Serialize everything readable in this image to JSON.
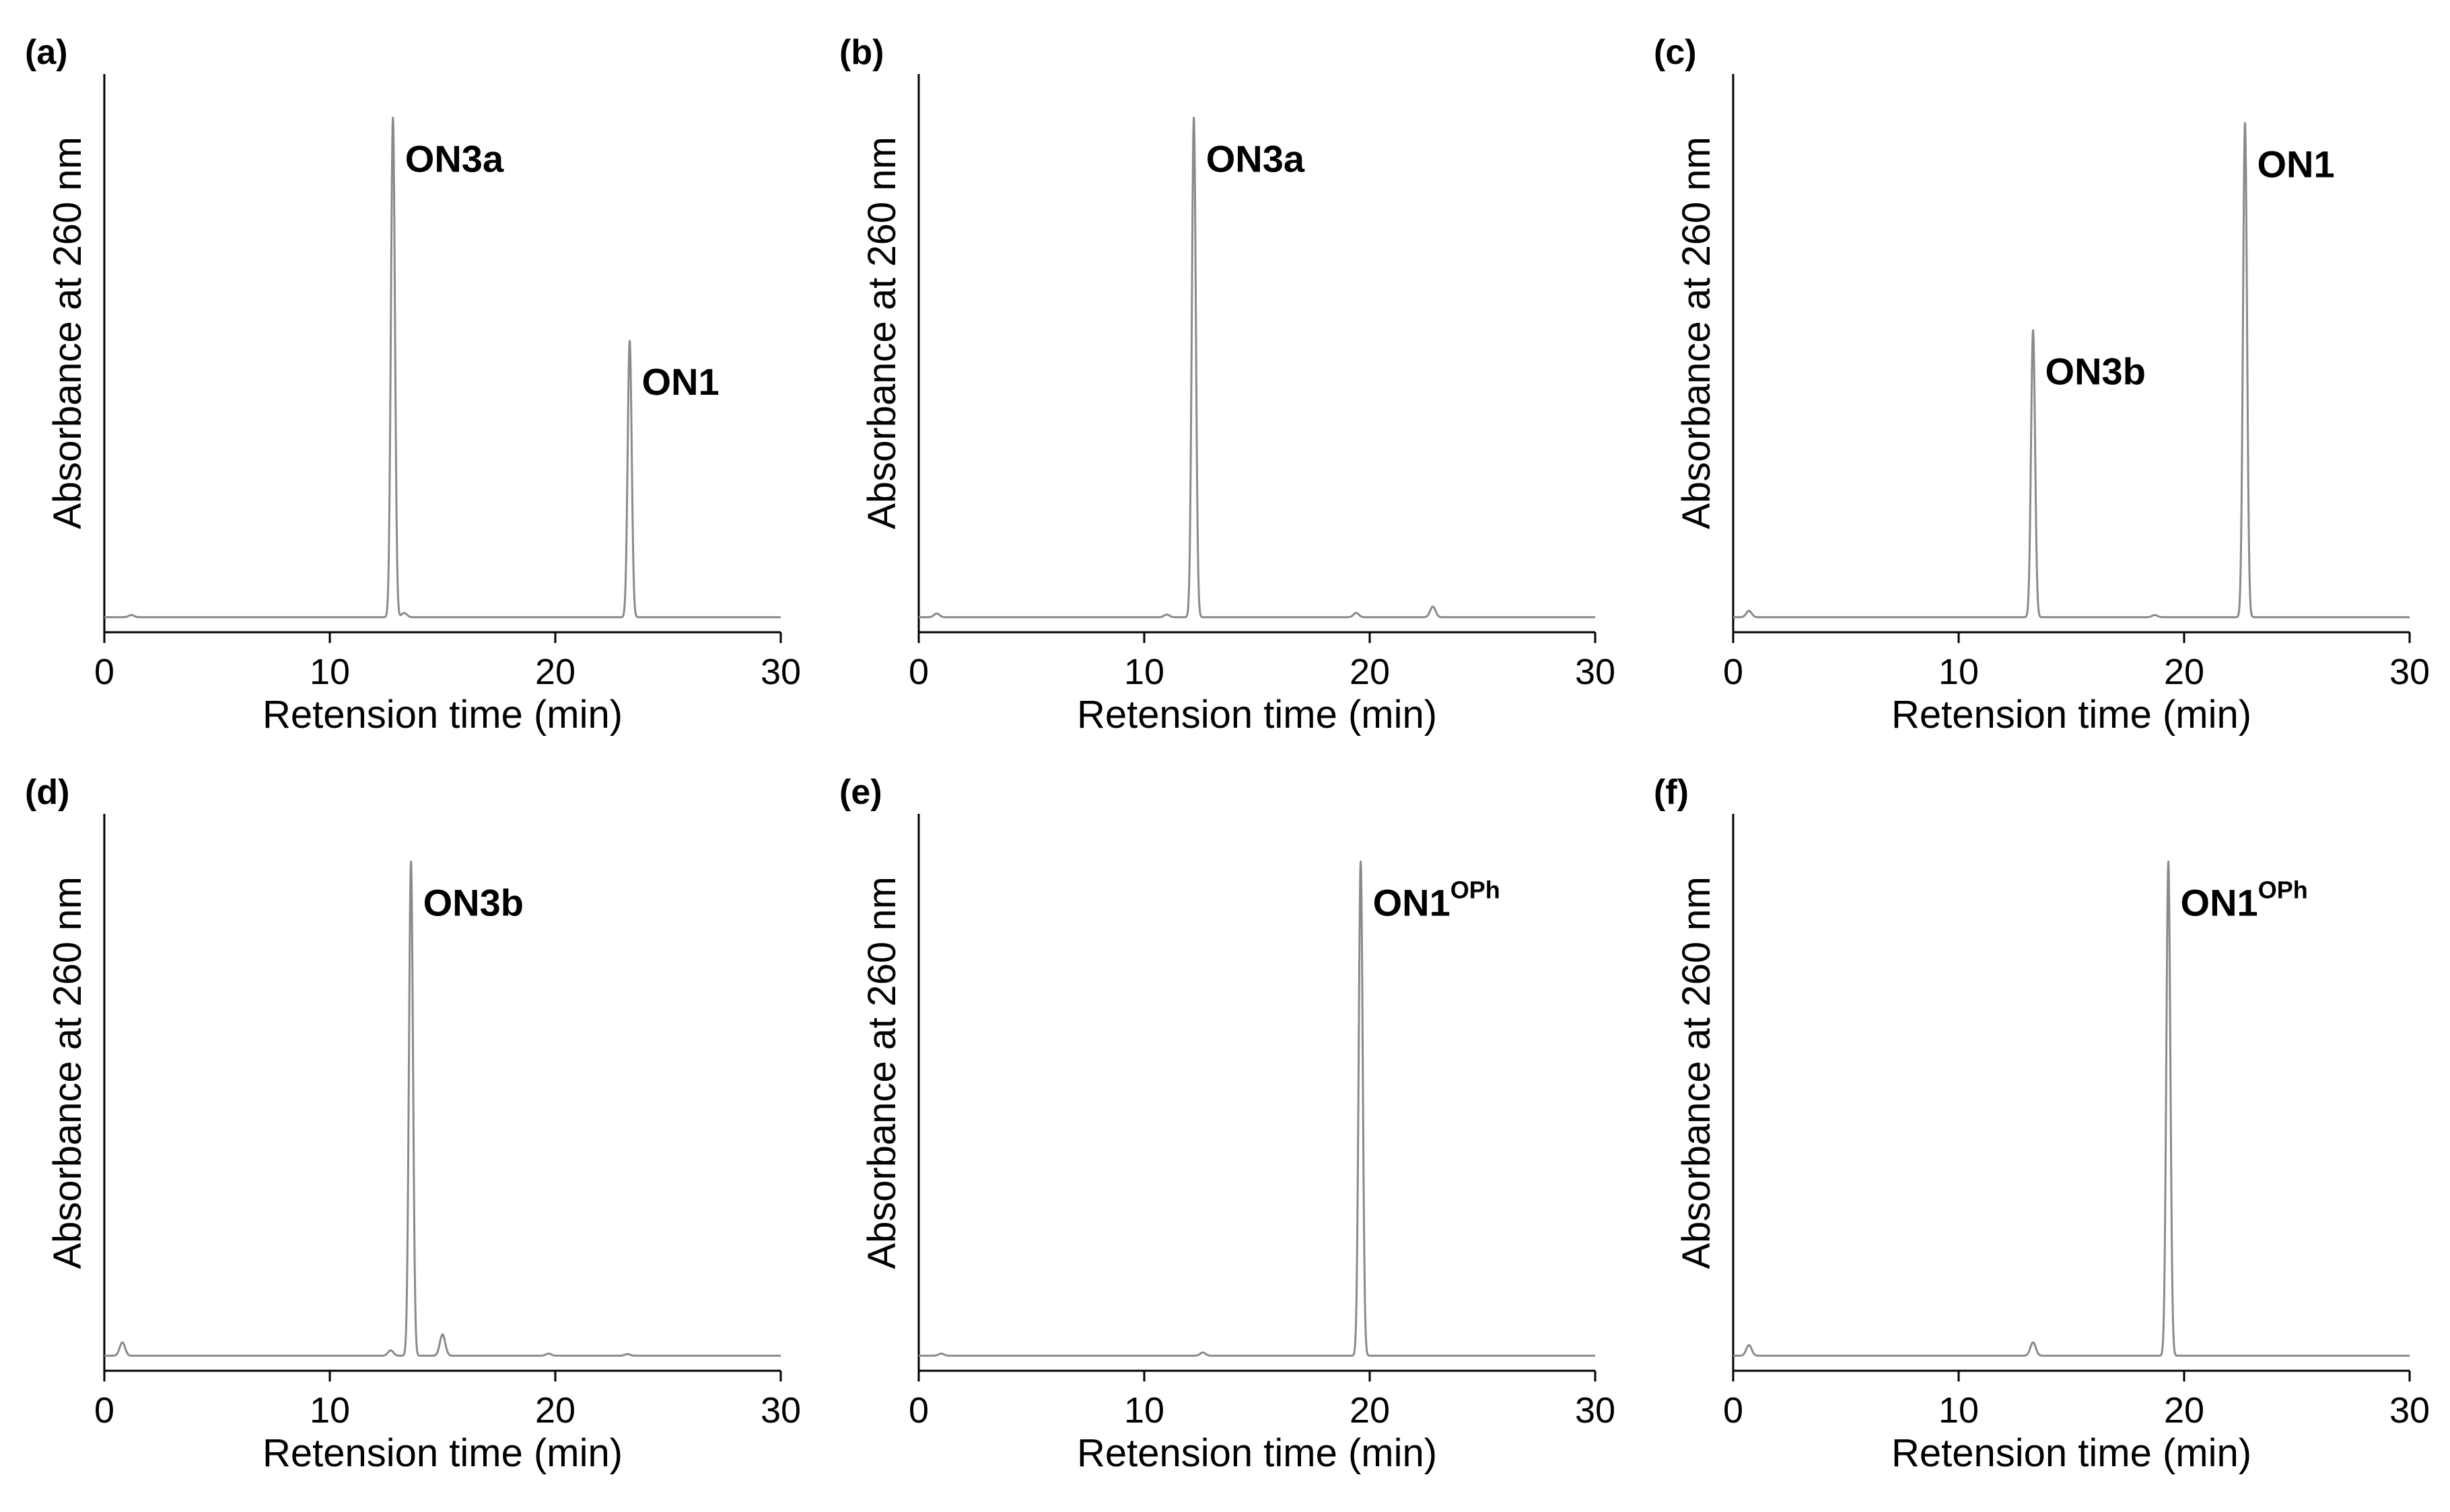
{
  "chart_data": [
    {
      "type": "line",
      "panel": "(a)",
      "xlabel": "Retension time (min)",
      "ylabel": "Absorbance at 260 nm",
      "xlim": [
        0,
        30
      ],
      "ylim": [
        0,
        1.0
      ],
      "xticks": [
        "0",
        "10",
        "20",
        "30"
      ],
      "peaks": [
        {
          "name": "ON3a",
          "sup": "",
          "x": 12.8,
          "height": 0.94
        },
        {
          "name": "ON1",
          "sup": "",
          "x": 23.3,
          "height": 0.52
        }
      ],
      "minor_peaks": [
        {
          "x": 1.2,
          "height": 0.004
        },
        {
          "x": 13.3,
          "height": 0.008
        }
      ]
    },
    {
      "type": "line",
      "panel": "(b)",
      "xlabel": "Retension time (min)",
      "ylabel": "Absorbance at 260 nm",
      "xlim": [
        0,
        30
      ],
      "ylim": [
        0,
        1.0
      ],
      "xticks": [
        "0",
        "10",
        "20",
        "30"
      ],
      "peaks": [
        {
          "name": "ON3a",
          "sup": "",
          "x": 12.2,
          "height": 0.94
        }
      ],
      "minor_peaks": [
        {
          "x": 0.8,
          "height": 0.007
        },
        {
          "x": 11.0,
          "height": 0.005
        },
        {
          "x": 19.4,
          "height": 0.008
        },
        {
          "x": 22.8,
          "height": 0.02
        }
      ]
    },
    {
      "type": "line",
      "panel": "(c)",
      "xlabel": "Retension time (min)",
      "ylabel": "Absorbance at 260 nm",
      "xlim": [
        0,
        30
      ],
      "ylim": [
        0,
        1.0
      ],
      "xticks": [
        "0",
        "10",
        "20",
        "30"
      ],
      "peaks": [
        {
          "name": "ON3b",
          "sup": "",
          "x": 13.3,
          "height": 0.54
        },
        {
          "name": "ON1",
          "sup": "",
          "x": 22.7,
          "height": 0.93
        }
      ],
      "minor_peaks": [
        {
          "x": 0.7,
          "height": 0.012
        },
        {
          "x": 18.7,
          "height": 0.004
        }
      ]
    },
    {
      "type": "line",
      "panel": "(d)",
      "xlabel": "Retension time (min)",
      "ylabel": "Absorbance at 260 nm",
      "xlim": [
        0,
        30
      ],
      "ylim": [
        0,
        1.0
      ],
      "xticks": [
        "0",
        "10",
        "20",
        "30"
      ],
      "peaks": [
        {
          "name": "ON3b",
          "sup": "",
          "x": 13.6,
          "height": 0.93
        }
      ],
      "minor_peaks": [
        {
          "x": 0.8,
          "height": 0.025
        },
        {
          "x": 12.7,
          "height": 0.01
        },
        {
          "x": 15.0,
          "height": 0.04
        },
        {
          "x": 19.7,
          "height": 0.004
        },
        {
          "x": 23.2,
          "height": 0.003
        }
      ]
    },
    {
      "type": "line",
      "panel": "(e)",
      "xlabel": "Retension time (min)",
      "ylabel": "Absorbance at 260 nm",
      "xlim": [
        0,
        30
      ],
      "ylim": [
        0,
        1.0
      ],
      "xticks": [
        "0",
        "10",
        "20",
        "30"
      ],
      "peaks": [
        {
          "name": "ON1",
          "sup": "OPh",
          "x": 19.6,
          "height": 0.93
        }
      ],
      "minor_peaks": [
        {
          "x": 1.0,
          "height": 0.004
        },
        {
          "x": 12.6,
          "height": 0.006
        }
      ]
    },
    {
      "type": "line",
      "panel": "(f)",
      "xlabel": "Retension time (min)",
      "ylabel": "Absorbance at 260 nm",
      "xlim": [
        0,
        30
      ],
      "ylim": [
        0,
        1.0
      ],
      "xticks": [
        "0",
        "10",
        "20",
        "30"
      ],
      "peaks": [
        {
          "name": "ON1",
          "sup": "OPh",
          "x": 19.3,
          "height": 0.93
        }
      ],
      "minor_peaks": [
        {
          "x": 0.7,
          "height": 0.02
        },
        {
          "x": 13.3,
          "height": 0.025
        }
      ]
    }
  ]
}
